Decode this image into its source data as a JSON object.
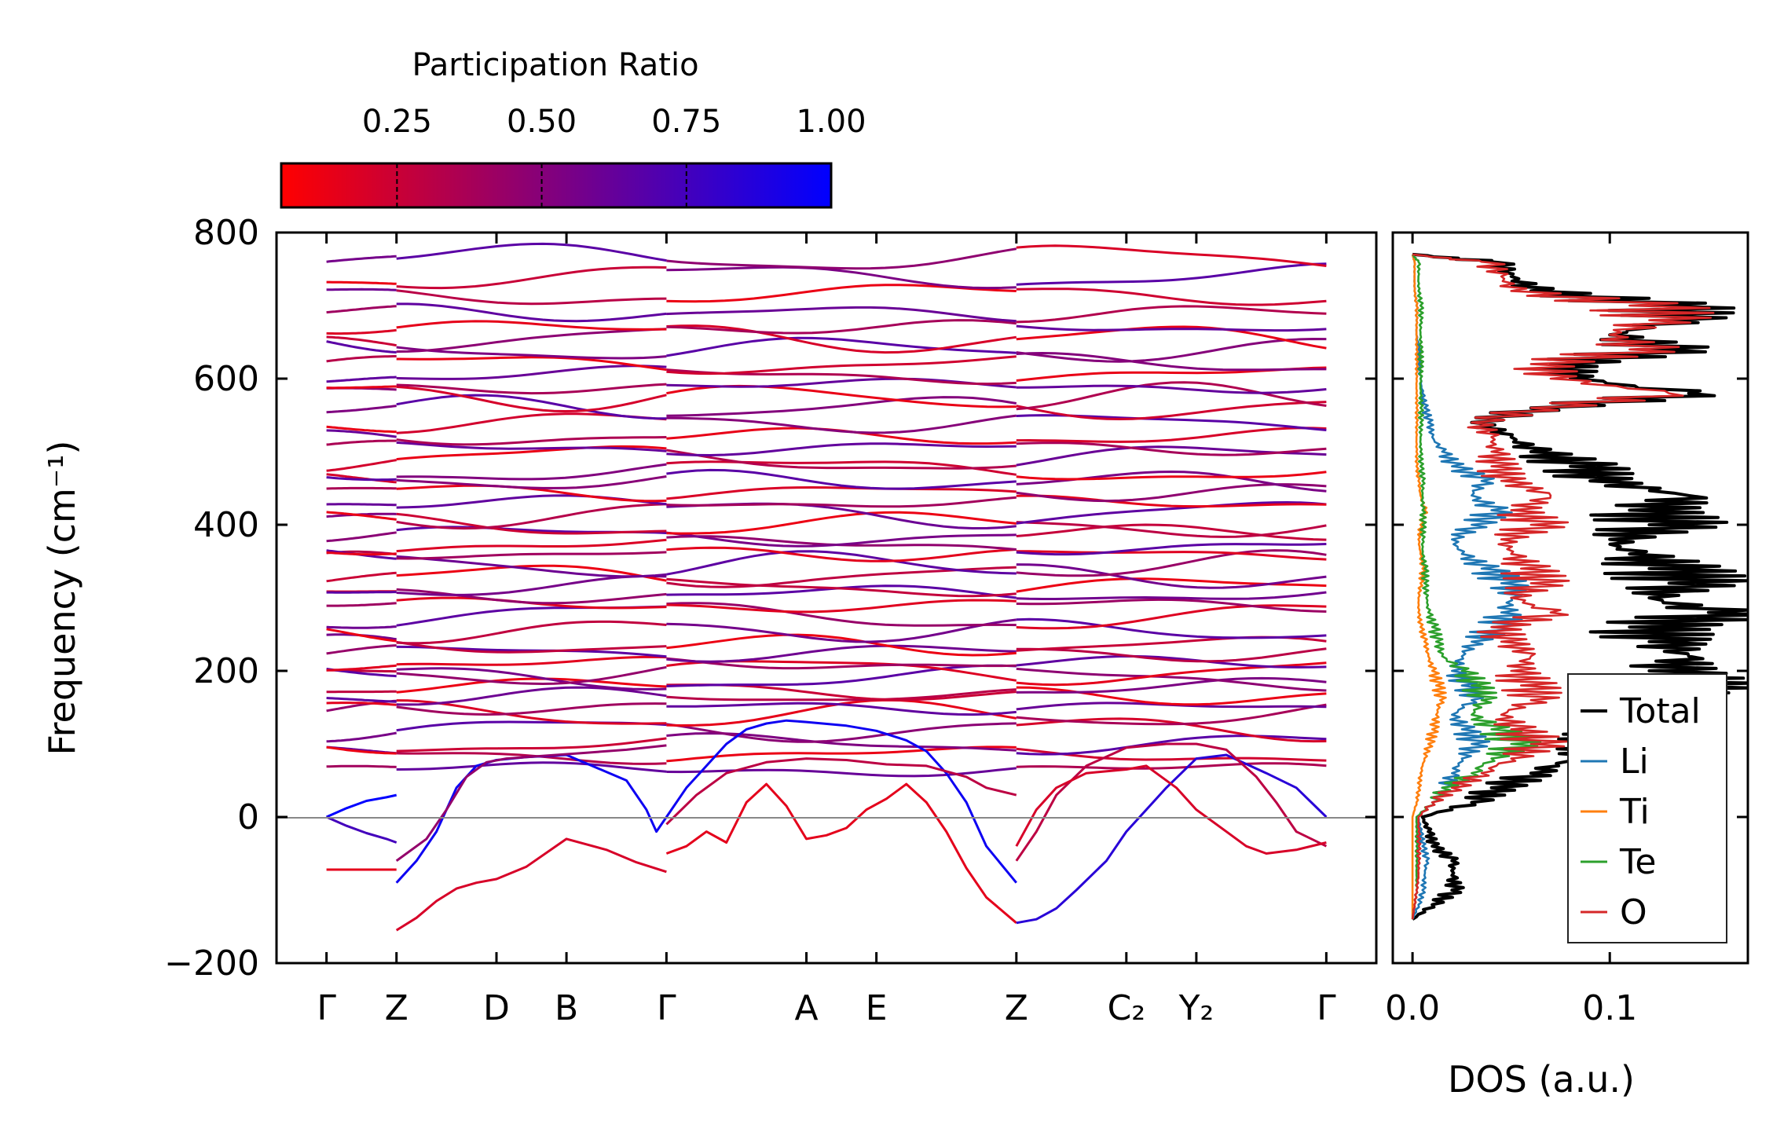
{
  "chart_data": [
    {
      "type": "line",
      "name": "phonon-band-structure",
      "ylabel": "Frequency (cm⁻¹)",
      "ylim": [
        -200,
        800
      ],
      "yticks": [
        -200,
        0,
        200,
        400,
        600,
        800
      ],
      "ytick_labels": [
        "−200",
        "0",
        "200",
        "400",
        "600",
        "800"
      ],
      "kpath": [
        {
          "label": "Γ",
          "x": 0.0
        },
        {
          "label": "Z",
          "x": 0.07
        },
        {
          "label": "D",
          "x": 0.17
        },
        {
          "label": "B",
          "x": 0.24
        },
        {
          "label": "Γ",
          "x": 0.34
        },
        {
          "label": "A",
          "x": 0.48
        },
        {
          "label": "E",
          "x": 0.55
        },
        {
          "label": "Z",
          "x": 0.69
        },
        {
          "label": "C₂",
          "x": 0.8
        },
        {
          "label": "Y₂",
          "x": 0.87
        },
        {
          "label": "Γ",
          "x": 1.0
        }
      ],
      "xlim": [
        -0.05,
        1.05
      ],
      "zero_line": 0,
      "colorbar": {
        "title": "Participation Ratio",
        "ticks": [
          0.25,
          0.5,
          0.75,
          1.0
        ],
        "tick_labels": [
          "0.25",
          "0.50",
          "0.75",
          "1.00"
        ],
        "range": [
          0.05,
          1.0
        ],
        "color_low": "#ff0000",
        "color_high": "#0000ff"
      },
      "acoustic_branches": [
        {
          "x": [
            0,
            0.02,
            0.04,
            0.06,
            0.07
          ],
          "y": [
            0,
            12,
            22,
            27,
            30
          ],
          "pr": 1.0
        },
        {
          "x": [
            0,
            0.02,
            0.04,
            0.06,
            0.07
          ],
          "y": [
            0,
            -12,
            -22,
            -30,
            -35
          ],
          "pr": 0.75
        },
        {
          "x": [
            0.07,
            0.09,
            0.11,
            0.13,
            0.15,
            0.17,
            0.2,
            0.24,
            0.28,
            0.31,
            0.34
          ],
          "y": [
            -155,
            -138,
            -115,
            -98,
            -90,
            -85,
            -68,
            -30,
            -45,
            -62,
            -75
          ],
          "pr": 0.2
        },
        {
          "x": [
            0.07,
            0.09,
            0.11,
            0.13,
            0.15,
            0.17,
            0.2,
            0.24,
            0.3,
            0.32,
            0.33,
            0.34
          ],
          "y": [
            -90,
            -60,
            -20,
            40,
            70,
            78,
            82,
            85,
            50,
            10,
            -20,
            0
          ],
          "pr": 0.95
        },
        {
          "x": [
            0.07,
            0.1,
            0.12,
            0.14,
            0.16,
            0.18,
            0.22,
            0.26,
            0.3,
            0.34
          ],
          "y": [
            -60,
            -30,
            10,
            55,
            75,
            80,
            84,
            88,
            92,
            98
          ],
          "pr": 0.45
        },
        {
          "x": [
            0.34,
            0.36,
            0.38,
            0.4,
            0.42,
            0.44,
            0.46,
            0.48,
            0.52,
            0.55,
            0.58,
            0.6,
            0.62,
            0.64,
            0.66,
            0.69
          ],
          "y": [
            0,
            40,
            70,
            100,
            120,
            128,
            132,
            130,
            125,
            118,
            105,
            90,
            60,
            20,
            -40,
            -90
          ],
          "pr": 0.95
        },
        {
          "x": [
            0.34,
            0.36,
            0.38,
            0.4,
            0.42,
            0.44,
            0.46,
            0.48,
            0.5,
            0.52,
            0.54,
            0.56,
            0.58,
            0.6,
            0.62,
            0.64,
            0.66,
            0.69
          ],
          "y": [
            -50,
            -40,
            -20,
            -35,
            20,
            45,
            15,
            -30,
            -25,
            -15,
            10,
            25,
            45,
            20,
            -20,
            -70,
            -110,
            -145
          ],
          "pr": 0.15
        },
        {
          "x": [
            0.34,
            0.37,
            0.4,
            0.44,
            0.48,
            0.52,
            0.56,
            0.6,
            0.64,
            0.66,
            0.69
          ],
          "y": [
            -10,
            30,
            60,
            75,
            80,
            78,
            72,
            70,
            55,
            40,
            30
          ],
          "pr": 0.3
        },
        {
          "x": [
            0.69,
            0.71,
            0.73,
            0.75,
            0.78,
            0.8,
            0.84,
            0.87,
            0.9,
            0.94,
            0.97,
            1.0
          ],
          "y": [
            -145,
            -140,
            -125,
            -100,
            -60,
            -20,
            40,
            80,
            85,
            60,
            40,
            0
          ],
          "pr": 0.85
        },
        {
          "x": [
            0.69,
            0.71,
            0.73,
            0.76,
            0.8,
            0.84,
            0.87,
            0.9,
            0.93,
            0.95,
            0.97,
            1.0
          ],
          "y": [
            -60,
            -20,
            30,
            70,
            95,
            100,
            100,
            92,
            55,
            20,
            -20,
            -40
          ],
          "pr": 0.3
        },
        {
          "x": [
            0.69,
            0.71,
            0.73,
            0.76,
            0.8,
            0.82,
            0.85,
            0.87,
            0.9,
            0.92,
            0.94,
            0.97,
            1.0
          ],
          "y": [
            -40,
            10,
            40,
            60,
            65,
            70,
            40,
            10,
            -20,
            -40,
            -50,
            -45,
            -35
          ],
          "pr": 0.2
        },
        {
          "x": [
            0.0,
            0.07
          ],
          "y": [
            -72,
            -72
          ],
          "pr": 0.15
        }
      ],
      "optical_levels": [
        65,
        85,
        100,
        120,
        140,
        150,
        165,
        175,
        190,
        200,
        210,
        225,
        235,
        255,
        275,
        290,
        305,
        315,
        330,
        345,
        360,
        372,
        385,
        400,
        415,
        430,
        445,
        460,
        475,
        490,
        505,
        520,
        540,
        560,
        575,
        590,
        605,
        620,
        640,
        655,
        670,
        690,
        715,
        740,
        765
      ],
      "panel_breaks": [
        0.07,
        0.34,
        0.69
      ]
    },
    {
      "type": "line",
      "name": "density-of-states",
      "xlabel": "DOS (a.u.)",
      "xlim": [
        -0.01,
        0.17
      ],
      "xticks": [
        0.0,
        0.1
      ],
      "xtick_labels": [
        "0.0",
        "0.1"
      ],
      "ylim": [
        -200,
        800
      ],
      "legend_position": "lower-right",
      "series": [
        {
          "name": "Total",
          "color": "#000000"
        },
        {
          "name": "Li",
          "color": "#1f77b4"
        },
        {
          "name": "Ti",
          "color": "#ff7f0e"
        },
        {
          "name": "Te",
          "color": "#2ca02c"
        },
        {
          "name": "O",
          "color": "#d62728"
        }
      ],
      "curves": {
        "y": [
          -140,
          -120,
          -100,
          -80,
          -60,
          -40,
          -20,
          0,
          20,
          40,
          60,
          80,
          100,
          120,
          140,
          160,
          180,
          200,
          220,
          240,
          260,
          280,
          300,
          320,
          340,
          360,
          380,
          400,
          420,
          440,
          460,
          480,
          500,
          520,
          540,
          560,
          580,
          600,
          620,
          640,
          660,
          680,
          700,
          720,
          740,
          760,
          770
        ],
        "Total": [
          0.0,
          0.01,
          0.02,
          0.02,
          0.02,
          0.01,
          0.008,
          0.005,
          0.03,
          0.04,
          0.06,
          0.08,
          0.09,
          0.1,
          0.11,
          0.12,
          0.13,
          0.12,
          0.14,
          0.12,
          0.11,
          0.15,
          0.12,
          0.13,
          0.12,
          0.11,
          0.1,
          0.12,
          0.11,
          0.14,
          0.09,
          0.08,
          0.06,
          0.05,
          0.03,
          0.06,
          0.14,
          0.08,
          0.07,
          0.12,
          0.1,
          0.13,
          0.12,
          0.06,
          0.05,
          0.04,
          0.0
        ],
        "Li": [
          0.0,
          0.003,
          0.005,
          0.006,
          0.007,
          0.005,
          0.004,
          0.003,
          0.01,
          0.015,
          0.02,
          0.025,
          0.03,
          0.025,
          0.02,
          0.03,
          0.025,
          0.02,
          0.025,
          0.03,
          0.04,
          0.045,
          0.05,
          0.045,
          0.035,
          0.025,
          0.02,
          0.03,
          0.04,
          0.03,
          0.035,
          0.02,
          0.015,
          0.01,
          0.008,
          0.006,
          0.005,
          0.004,
          0.003,
          0.003,
          0.002,
          0.002,
          0.002,
          0.001,
          0.001,
          0.001,
          0.0
        ],
        "Ti": [
          0.0,
          0.0,
          0.0,
          0.0,
          0.0,
          0.0,
          0.0,
          0.0,
          0.002,
          0.003,
          0.004,
          0.006,
          0.008,
          0.01,
          0.012,
          0.014,
          0.012,
          0.01,
          0.008,
          0.006,
          0.004,
          0.003,
          0.003,
          0.004,
          0.005,
          0.004,
          0.003,
          0.004,
          0.006,
          0.004,
          0.003,
          0.002,
          0.002,
          0.002,
          0.002,
          0.002,
          0.002,
          0.002,
          0.002,
          0.002,
          0.002,
          0.002,
          0.002,
          0.001,
          0.001,
          0.001,
          0.0
        ],
        "Te": [
          0.0,
          0.001,
          0.002,
          0.002,
          0.002,
          0.002,
          0.002,
          0.002,
          0.01,
          0.015,
          0.03,
          0.04,
          0.05,
          0.04,
          0.03,
          0.035,
          0.03,
          0.025,
          0.015,
          0.012,
          0.01,
          0.008,
          0.007,
          0.006,
          0.006,
          0.005,
          0.005,
          0.005,
          0.005,
          0.005,
          0.005,
          0.004,
          0.004,
          0.004,
          0.004,
          0.004,
          0.004,
          0.004,
          0.004,
          0.004,
          0.004,
          0.004,
          0.004,
          0.003,
          0.003,
          0.003,
          0.0
        ],
        "O": [
          0.0,
          0.001,
          0.002,
          0.003,
          0.003,
          0.003,
          0.003,
          0.003,
          0.01,
          0.02,
          0.035,
          0.05,
          0.06,
          0.05,
          0.045,
          0.06,
          0.055,
          0.05,
          0.06,
          0.045,
          0.04,
          0.07,
          0.05,
          0.06,
          0.055,
          0.05,
          0.045,
          0.06,
          0.05,
          0.07,
          0.045,
          0.04,
          0.04,
          0.04,
          0.03,
          0.06,
          0.13,
          0.07,
          0.06,
          0.11,
          0.1,
          0.12,
          0.11,
          0.05,
          0.045,
          0.035,
          0.0
        ]
      }
    }
  ]
}
